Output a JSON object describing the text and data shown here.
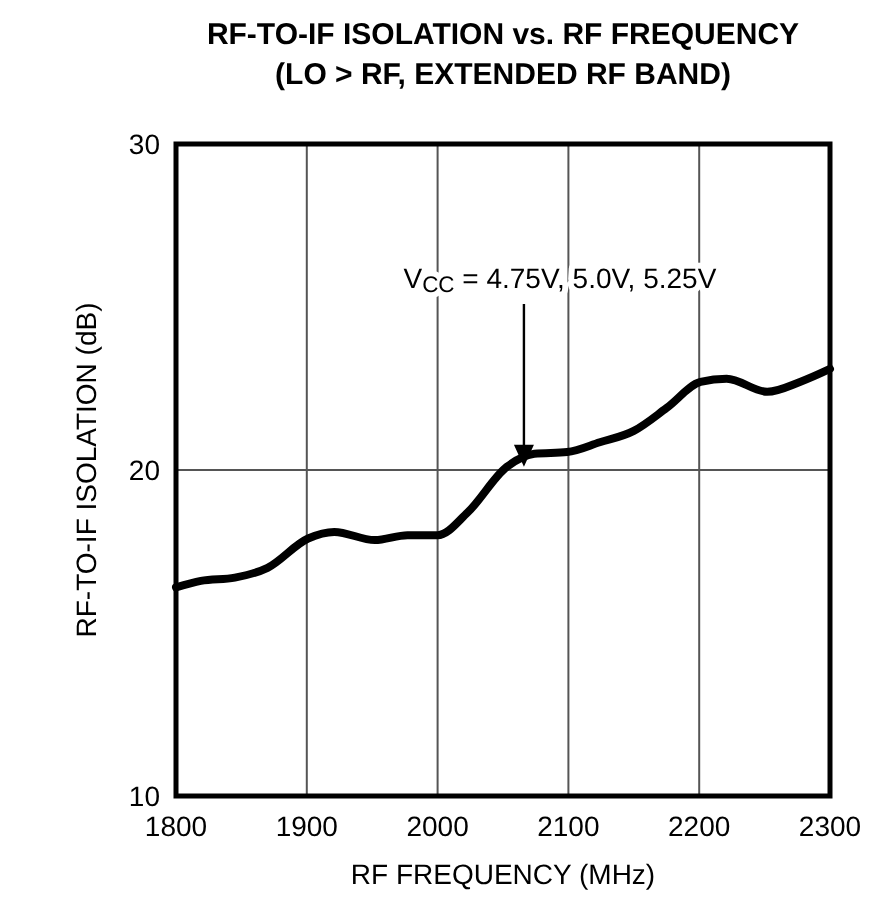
{
  "chart_data": {
    "type": "line",
    "title": "RF-TO-IF ISOLATION vs. RF FREQUENCY",
    "subtitle": "(LO > RF, EXTENDED RF BAND)",
    "xlabel": "RF FREQUENCY (MHz)",
    "ylabel": "RF-TO-IF ISOLATION (dB)",
    "x": [
      1800,
      1819,
      1845,
      1870,
      1901,
      1921,
      1952,
      1977,
      2000,
      2023,
      2053,
      2074,
      2099,
      2124,
      2150,
      2175,
      2201,
      2221,
      2252,
      2277,
      2300
    ],
    "series": [
      {
        "color": "#000000",
        "values": [
          16.4,
          16.6,
          16.7,
          17.0,
          17.9,
          18.1,
          17.85,
          18.0,
          18.0,
          18.7,
          20.1,
          20.5,
          20.55,
          20.85,
          21.2,
          21.9,
          22.7,
          22.8,
          22.4,
          22.7,
          23.1
        ]
      }
    ],
    "xlim": [
      1800,
      2300
    ],
    "xticks": [
      1800,
      1900,
      2000,
      2100,
      2200,
      2300
    ],
    "ylim": [
      10,
      30
    ],
    "yticks": [
      10,
      20,
      30
    ],
    "grid": true,
    "line_style": "solid",
    "annotations": [
      "V$_{CC}$ = 4.75V, 5.0V, 5.25V"
    ]
  }
}
